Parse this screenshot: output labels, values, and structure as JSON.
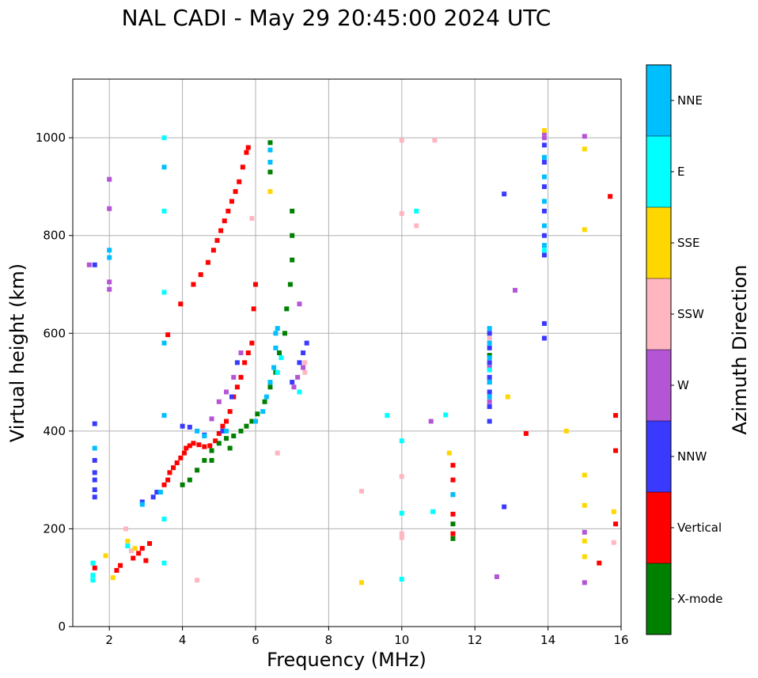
{
  "chart_data": {
    "type": "scatter",
    "title": "NAL CADI - May 29 20:45:00 2024 UTC",
    "xlabel": "Frequency (MHz)",
    "ylabel": "Virtual height (km)",
    "xlim": [
      1,
      16
    ],
    "ylim": [
      0,
      1120
    ],
    "xticks": [
      2,
      4,
      6,
      8,
      10,
      12,
      14,
      16
    ],
    "yticks": [
      0,
      200,
      400,
      600,
      800,
      1000
    ],
    "grid": true,
    "colorbar": {
      "label": "Azimuth Direction",
      "categories": [
        {
          "name": "X-mode",
          "color": "#008000"
        },
        {
          "name": "Vertical",
          "color": "#ff0000"
        },
        {
          "name": "NNW",
          "color": "#3a3aff"
        },
        {
          "name": "W",
          "color": "#b455d6"
        },
        {
          "name": "SSW",
          "color": "#ffb6c1"
        },
        {
          "name": "SSE",
          "color": "#ffd700"
        },
        {
          "name": "E",
          "color": "#00ffff"
        },
        {
          "name": "NNE",
          "color": "#00bfff"
        }
      ]
    },
    "series": [
      {
        "name": "Vertical",
        "color": "#ff0000",
        "points": [
          [
            2.65,
            140
          ],
          [
            2.8,
            150
          ],
          [
            2.9,
            160
          ],
          [
            3.0,
            135
          ],
          [
            3.1,
            170
          ],
          [
            3.5,
            290
          ],
          [
            3.6,
            300
          ],
          [
            3.65,
            315
          ],
          [
            3.75,
            325
          ],
          [
            3.85,
            335
          ],
          [
            3.95,
            345
          ],
          [
            4.05,
            355
          ],
          [
            4.1,
            365
          ],
          [
            4.2,
            370
          ],
          [
            4.3,
            375
          ],
          [
            4.45,
            372
          ],
          [
            4.6,
            368
          ],
          [
            4.75,
            370
          ],
          [
            4.9,
            380
          ],
          [
            5.0,
            395
          ],
          [
            5.1,
            410
          ],
          [
            5.2,
            420
          ],
          [
            5.3,
            440
          ],
          [
            5.4,
            470
          ],
          [
            5.5,
            490
          ],
          [
            5.6,
            510
          ],
          [
            5.7,
            540
          ],
          [
            5.8,
            560
          ],
          [
            5.9,
            580
          ],
          [
            5.95,
            650
          ],
          [
            6.0,
            700
          ],
          [
            3.95,
            660
          ],
          [
            4.3,
            700
          ],
          [
            4.5,
            720
          ],
          [
            4.7,
            745
          ],
          [
            4.85,
            770
          ],
          [
            4.95,
            790
          ],
          [
            5.05,
            810
          ],
          [
            5.15,
            830
          ],
          [
            5.25,
            850
          ],
          [
            5.35,
            870
          ],
          [
            5.45,
            890
          ],
          [
            5.55,
            910
          ],
          [
            5.65,
            940
          ],
          [
            5.75,
            970
          ],
          [
            5.8,
            980
          ],
          [
            11.4,
            190
          ],
          [
            11.4,
            230
          ],
          [
            11.4,
            270
          ],
          [
            11.4,
            300
          ],
          [
            11.4,
            330
          ],
          [
            13.4,
            395
          ],
          [
            15.4,
            130
          ],
          [
            15.7,
            880
          ],
          [
            15.85,
            210
          ],
          [
            15.85,
            360
          ],
          [
            15.85,
            432
          ],
          [
            1.6,
            120
          ],
          [
            2.2,
            115
          ],
          [
            2.3,
            125
          ],
          [
            3.6,
            597
          ]
        ]
      },
      {
        "name": "X-mode",
        "color": "#008000",
        "points": [
          [
            4.0,
            290
          ],
          [
            4.2,
            300
          ],
          [
            4.4,
            320
          ],
          [
            4.6,
            340
          ],
          [
            4.8,
            360
          ],
          [
            5.0,
            375
          ],
          [
            5.2,
            385
          ],
          [
            5.4,
            390
          ],
          [
            5.6,
            400
          ],
          [
            5.75,
            410
          ],
          [
            5.9,
            420
          ],
          [
            6.05,
            435
          ],
          [
            6.25,
            460
          ],
          [
            6.4,
            490
          ],
          [
            6.55,
            520
          ],
          [
            6.65,
            560
          ],
          [
            6.8,
            600
          ],
          [
            6.85,
            650
          ],
          [
            6.95,
            700
          ],
          [
            7.0,
            750
          ],
          [
            7.0,
            800
          ],
          [
            7.0,
            850
          ],
          [
            6.4,
            930
          ],
          [
            6.4,
            990
          ],
          [
            11.4,
            180
          ],
          [
            11.4,
            210
          ],
          [
            12.4,
            555
          ],
          [
            4.8,
            340
          ],
          [
            5.3,
            365
          ]
        ]
      },
      {
        "name": "NNW",
        "color": "#3a3aff",
        "points": [
          [
            1.6,
            265
          ],
          [
            1.6,
            280
          ],
          [
            1.6,
            300
          ],
          [
            1.6,
            315
          ],
          [
            1.6,
            340
          ],
          [
            1.6,
            415
          ],
          [
            1.6,
            740
          ],
          [
            4.0,
            410
          ],
          [
            4.2,
            408
          ],
          [
            4.6,
            392
          ],
          [
            5.1,
            400
          ],
          [
            5.35,
            470
          ],
          [
            5.5,
            540
          ],
          [
            7.0,
            500
          ],
          [
            7.2,
            540
          ],
          [
            7.3,
            560
          ],
          [
            7.4,
            580
          ],
          [
            12.4,
            420
          ],
          [
            12.4,
            450
          ],
          [
            12.4,
            480
          ],
          [
            12.4,
            510
          ],
          [
            12.4,
            540
          ],
          [
            12.4,
            570
          ],
          [
            12.4,
            600
          ],
          [
            12.8,
            245
          ],
          [
            12.8,
            885
          ],
          [
            13.9,
            590
          ],
          [
            13.9,
            620
          ],
          [
            13.9,
            760
          ],
          [
            13.9,
            800
          ],
          [
            13.9,
            850
          ],
          [
            13.9,
            900
          ],
          [
            13.9,
            950
          ],
          [
            13.9,
            985
          ],
          [
            2.9,
            255
          ],
          [
            3.2,
            265
          ],
          [
            3.3,
            275
          ]
        ]
      },
      {
        "name": "W",
        "color": "#b455d6",
        "points": [
          [
            1.45,
            740
          ],
          [
            2.0,
            690
          ],
          [
            2.0,
            705
          ],
          [
            2.0,
            855
          ],
          [
            2.0,
            915
          ],
          [
            4.8,
            425
          ],
          [
            5.0,
            460
          ],
          [
            5.2,
            480
          ],
          [
            7.05,
            490
          ],
          [
            7.15,
            510
          ],
          [
            7.3,
            530
          ],
          [
            7.2,
            660
          ],
          [
            10.8,
            420
          ],
          [
            12.4,
            460
          ],
          [
            12.4,
            500
          ],
          [
            12.4,
            530
          ],
          [
            12.6,
            102
          ],
          [
            13.1,
            688
          ],
          [
            13.9,
            1000
          ],
          [
            13.9,
            1010
          ],
          [
            15.0,
            90
          ],
          [
            15.0,
            193
          ],
          [
            15.0,
            1003
          ],
          [
            5.4,
            510
          ],
          [
            5.6,
            560
          ]
        ]
      },
      {
        "name": "SSW",
        "color": "#ffb6c1",
        "points": [
          [
            2.45,
            200
          ],
          [
            2.6,
            155
          ],
          [
            4.4,
            95
          ],
          [
            5.9,
            835
          ],
          [
            7.35,
            520
          ],
          [
            7.35,
            540
          ],
          [
            8.9,
            277
          ],
          [
            10.0,
            182
          ],
          [
            10.0,
            190
          ],
          [
            10.0,
            307
          ],
          [
            10.0,
            845
          ],
          [
            10.0,
            995
          ],
          [
            10.4,
            820
          ],
          [
            10.9,
            995
          ],
          [
            12.4,
            590
          ],
          [
            15.8,
            172
          ],
          [
            6.6,
            355
          ]
        ]
      },
      {
        "name": "SSE",
        "color": "#ffd700",
        "points": [
          [
            2.5,
            175
          ],
          [
            2.7,
            160
          ],
          [
            8.9,
            90
          ],
          [
            11.3,
            355
          ],
          [
            12.9,
            470
          ],
          [
            14.5,
            400
          ],
          [
            15.0,
            143
          ],
          [
            15.0,
            175
          ],
          [
            15.0,
            248
          ],
          [
            15.0,
            310
          ],
          [
            15.0,
            812
          ],
          [
            15.0,
            977
          ],
          [
            15.8,
            235
          ],
          [
            6.4,
            890
          ],
          [
            13.9,
            1015
          ],
          [
            1.9,
            145
          ],
          [
            2.1,
            100
          ]
        ]
      },
      {
        "name": "E",
        "color": "#00ffff",
        "points": [
          [
            1.55,
            95
          ],
          [
            1.55,
            105
          ],
          [
            1.55,
            130
          ],
          [
            2.5,
            165
          ],
          [
            3.5,
            130
          ],
          [
            3.5,
            220
          ],
          [
            3.5,
            684
          ],
          [
            3.5,
            850
          ],
          [
            3.5,
            1000
          ],
          [
            9.6,
            432
          ],
          [
            10.0,
            97
          ],
          [
            10.0,
            232
          ],
          [
            10.0,
            380
          ],
          [
            10.4,
            850
          ],
          [
            10.85,
            235
          ],
          [
            11.2,
            433
          ],
          [
            12.4,
            525
          ],
          [
            13.9,
            770
          ],
          [
            6.6,
            520
          ],
          [
            6.7,
            550
          ],
          [
            7.2,
            480
          ]
        ]
      },
      {
        "name": "NNE",
        "color": "#00bfff",
        "points": [
          [
            1.6,
            365
          ],
          [
            2.0,
            755
          ],
          [
            2.0,
            770
          ],
          [
            2.9,
            250
          ],
          [
            3.4,
            275
          ],
          [
            3.5,
            432
          ],
          [
            3.5,
            580
          ],
          [
            3.5,
            940
          ],
          [
            4.4,
            400
          ],
          [
            4.6,
            390
          ],
          [
            6.0,
            420
          ],
          [
            6.2,
            440
          ],
          [
            6.3,
            470
          ],
          [
            6.4,
            500
          ],
          [
            6.5,
            530
          ],
          [
            6.55,
            570
          ],
          [
            6.55,
            600
          ],
          [
            6.6,
            610
          ],
          [
            6.4,
            950
          ],
          [
            6.4,
            975
          ],
          [
            12.4,
            470
          ],
          [
            12.4,
            500
          ],
          [
            12.4,
            550
          ],
          [
            12.4,
            580
          ],
          [
            12.4,
            610
          ],
          [
            13.9,
            780
          ],
          [
            13.9,
            820
          ],
          [
            13.9,
            870
          ],
          [
            13.9,
            920
          ],
          [
            13.9,
            960
          ],
          [
            11.4,
            270
          ],
          [
            5.2,
            400
          ]
        ]
      }
    ]
  }
}
